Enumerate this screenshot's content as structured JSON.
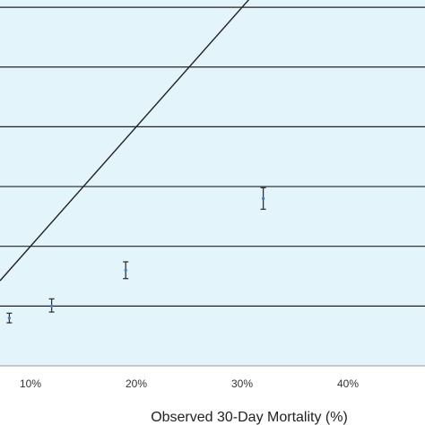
{
  "chart_data": {
    "type": "scatter",
    "title": "",
    "xlabel": "Observed 30-Day Mortality (%)",
    "ylabel": "",
    "xlim": [
      0,
      45
    ],
    "ylim": [
      0,
      30
    ],
    "x_ticks": [
      {
        "value": 10,
        "label": "10%"
      },
      {
        "value": 20,
        "label": "20%"
      },
      {
        "value": 30,
        "label": "30%"
      },
      {
        "value": 40,
        "label": "40%"
      }
    ],
    "y_gridlines": [
      5,
      10,
      15,
      20,
      25,
      30
    ],
    "grid": true,
    "background_color": "#e3f4fb",
    "points": [
      {
        "x": 8,
        "y": 4.0,
        "err_low": 3.6,
        "err_high": 4.4
      },
      {
        "x": 12,
        "y": 5.0,
        "err_low": 4.5,
        "err_high": 5.6
      },
      {
        "x": 19,
        "y": 8.0,
        "err_low": 7.3,
        "err_high": 8.7
      },
      {
        "x": 32,
        "y": 14.0,
        "err_low": 13.1,
        "err_high": 14.9
      }
    ],
    "reference_line": {
      "x1": 0,
      "y1": 0,
      "x2": 45,
      "y2": 45
    },
    "colors": {
      "point": "#3a7dd8",
      "errorbar": "#333333",
      "line": "#222222",
      "grid": "#222222"
    }
  }
}
